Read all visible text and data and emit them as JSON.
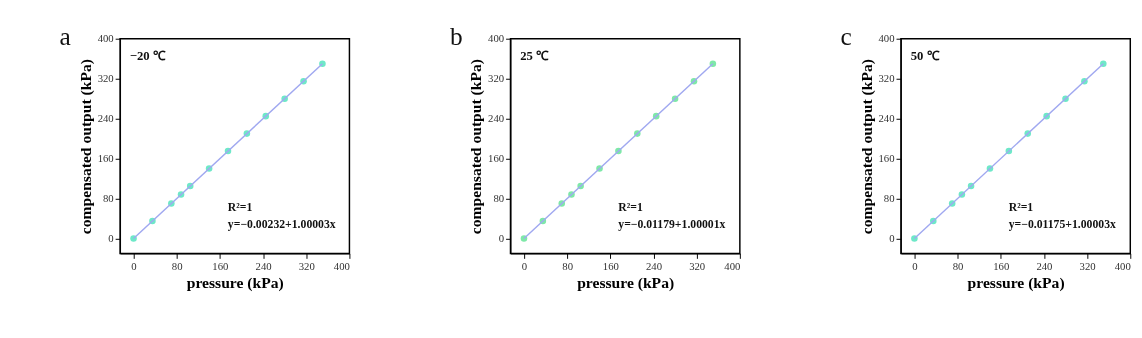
{
  "chart_data": [
    {
      "type": "scatter",
      "xlabel": "pressure (kPa)",
      "ylabel": "compensated output (kPa)",
      "xlim": [
        -25,
        400
      ],
      "ylim": [
        -30,
        400
      ],
      "xticks": [
        0,
        80,
        160,
        240,
        320,
        400
      ],
      "yticks": [
        0,
        80,
        160,
        240,
        320,
        400
      ],
      "grid": false,
      "marker": "circle",
      "annotations": [
        "a",
        "−20 ℃",
        "R²=1",
        "y=−0.00232+1.00003x"
      ],
      "series": [
        {
          "color": "#6ee8c8",
          "x": [
            0,
            35,
            70,
            88,
            105,
            140,
            175,
            210,
            245,
            280,
            315,
            350
          ],
          "values": [
            0,
            35,
            70,
            88,
            105,
            140,
            175,
            210,
            245,
            280,
            315,
            350
          ]
        },
        {
          "type": "line",
          "marker": "none",
          "color": "#a0a8f0",
          "x": [
            0,
            350
          ],
          "values": [
            0,
            350
          ]
        }
      ]
    },
    {
      "type": "scatter",
      "xlabel": "pressure (kPa)",
      "ylabel": "compensated output (kPa)",
      "xlim": [
        -25,
        400
      ],
      "ylim": [
        -30,
        400
      ],
      "xticks": [
        0,
        80,
        160,
        240,
        320,
        400
      ],
      "yticks": [
        0,
        80,
        160,
        240,
        320,
        400
      ],
      "grid": false,
      "marker": "circle",
      "annotations": [
        "b",
        "25 ℃",
        "R²=1",
        "y=−0.01179+1.00001x"
      ],
      "series": [
        {
          "color": "#7ee8a8",
          "x": [
            0,
            35,
            70,
            88,
            105,
            140,
            175,
            210,
            245,
            280,
            315,
            350
          ],
          "values": [
            0,
            35,
            70,
            88,
            105,
            140,
            175,
            210,
            245,
            280,
            315,
            350
          ]
        },
        {
          "type": "line",
          "marker": "none",
          "color": "#a0a8f0",
          "x": [
            0,
            350
          ],
          "values": [
            0,
            350
          ]
        }
      ]
    },
    {
      "type": "scatter",
      "xlabel": "pressure (kPa)",
      "ylabel": "compensated output (kPa)",
      "xlim": [
        -25,
        400
      ],
      "ylim": [
        -30,
        400
      ],
      "xticks": [
        0,
        80,
        160,
        240,
        320,
        400
      ],
      "yticks": [
        0,
        80,
        160,
        240,
        320,
        400
      ],
      "grid": false,
      "marker": "circle",
      "annotations": [
        "c",
        "50 ℃",
        "R²=1",
        "y=−0.01175+1.00003x"
      ],
      "series": [
        {
          "color": "#6ee8c8",
          "x": [
            0,
            35,
            70,
            88,
            105,
            140,
            175,
            210,
            245,
            280,
            315,
            350
          ],
          "values": [
            0,
            35,
            70,
            88,
            105,
            140,
            175,
            210,
            245,
            280,
            315,
            350
          ]
        },
        {
          "type": "line",
          "marker": "none",
          "color": "#a0a8f0",
          "x": [
            0,
            350
          ],
          "values": [
            0,
            350
          ]
        }
      ]
    }
  ]
}
